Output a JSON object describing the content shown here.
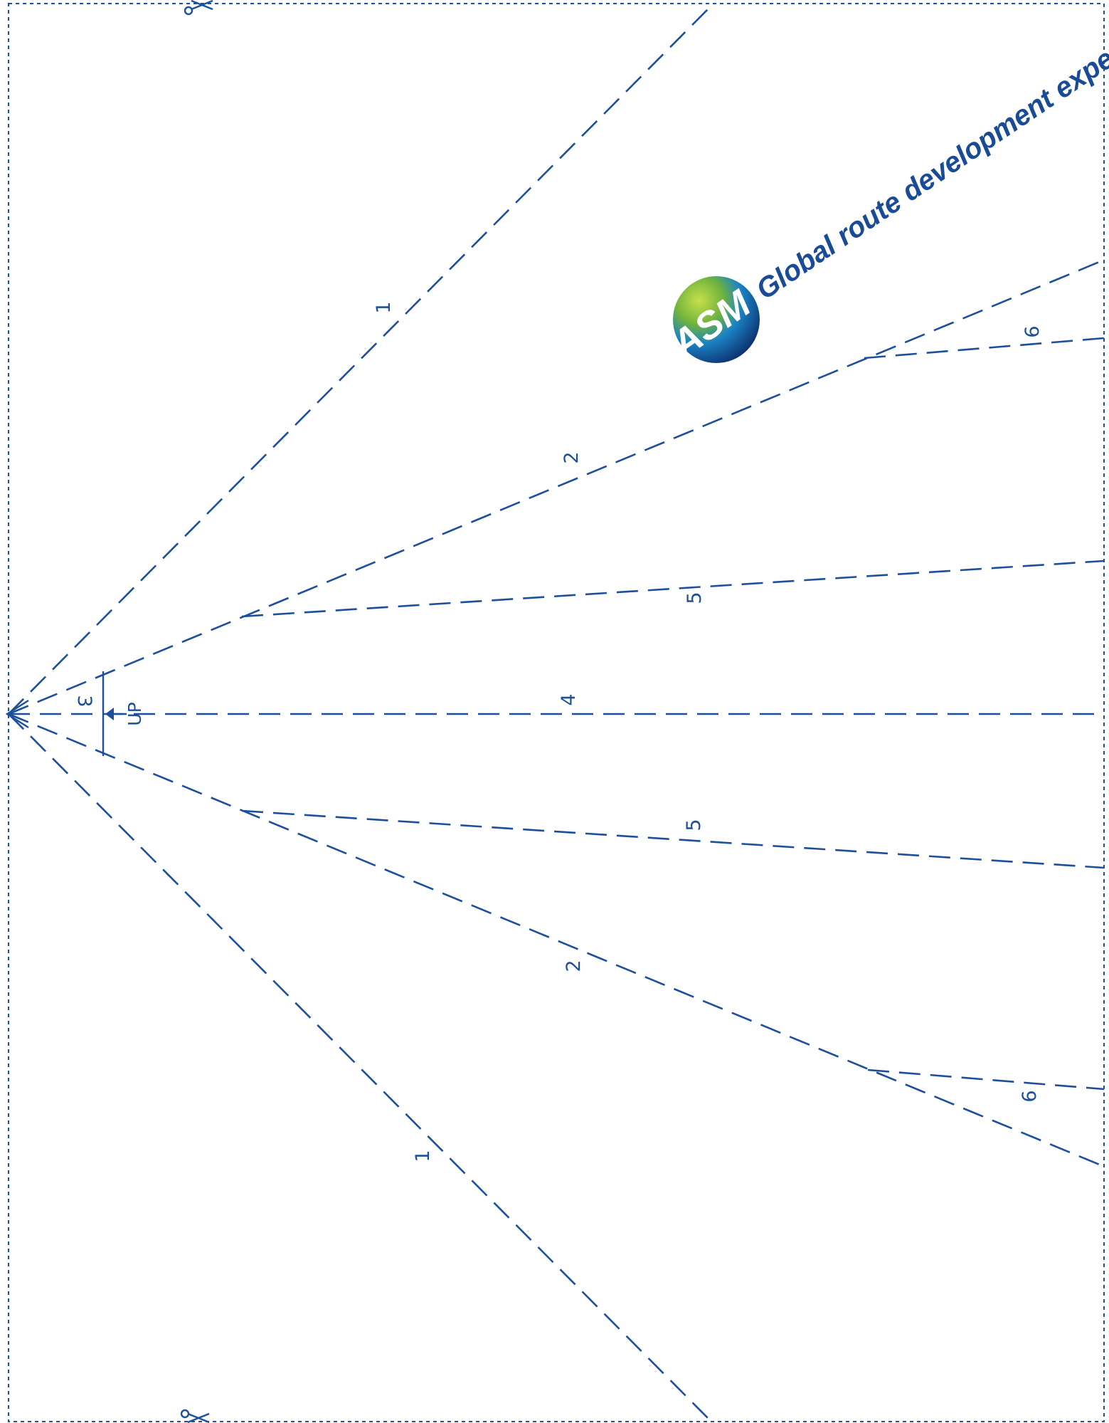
{
  "brand": {
    "logo_text": "ASM",
    "tagline": "Global route development experts"
  },
  "fold_labels": {
    "f1_top": "1",
    "f1_bottom": "1",
    "f2_top": "2",
    "f2_bottom": "2",
    "f3": "3",
    "f4": "4",
    "f5_top": "5",
    "f5_bottom": "5",
    "f6_top": "6",
    "f6_bottom": "6"
  },
  "direction_marker": {
    "label": "UP"
  },
  "icons": [
    "scissors-icon",
    "up-arrow-icon"
  ],
  "colors": {
    "ink": "#1d4f9b",
    "logo_green": "#8cc540",
    "logo_blue": "#0a5fae",
    "logo_navy": "#0d2f6e"
  }
}
